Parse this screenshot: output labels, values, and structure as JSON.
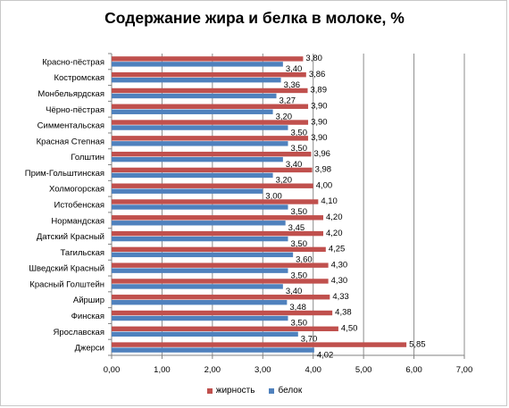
{
  "chart_data": {
    "type": "bar",
    "orientation": "horizontal",
    "title": "Содержание жира и белка в молоке, %",
    "categories": [
      "Красно-пёстрая",
      "Костромская",
      "Монбельярдская",
      "Чёрно-пёстрая",
      "Симментальская",
      "Красная Степная",
      "Голштин",
      "Прим-Гольштинская",
      "Холмогорская",
      "Истобенская",
      "Нормандская",
      "Датский Красный",
      "Тагильская",
      "Шведский Красный",
      "Красный Голштейн",
      "Айршир",
      "Финская",
      "Ярославская",
      "Джерси"
    ],
    "series": [
      {
        "name": "жирность",
        "color": "#c0504d",
        "values": [
          3.8,
          3.86,
          3.89,
          3.9,
          3.9,
          3.9,
          3.96,
          3.98,
          4.0,
          4.1,
          4.2,
          4.2,
          4.25,
          4.3,
          4.3,
          4.33,
          4.38,
          4.5,
          5.85
        ],
        "labels": [
          "3,80",
          "3,86",
          "3,89",
          "3,90",
          "3,90",
          "3,90",
          "3,96",
          "3,98",
          "4,00",
          "4,10",
          "4,20",
          "4,20",
          "4,25",
          "4,30",
          "4,30",
          "4,33",
          "4,38",
          "4,50",
          "5,85"
        ]
      },
      {
        "name": "белок",
        "color": "#4f81bd",
        "values": [
          3.4,
          3.36,
          3.27,
          3.2,
          3.5,
          3.5,
          3.4,
          3.2,
          3.0,
          3.5,
          3.45,
          3.5,
          3.6,
          3.5,
          3.4,
          3.48,
          3.5,
          3.7,
          4.02
        ],
        "labels": [
          "3,40",
          "3,36",
          "3,27",
          "3,20",
          "3,50",
          "3,50",
          "3,40",
          "3,20",
          "3,00",
          "3,50",
          "3,45",
          "3,50",
          "3,60",
          "3,50",
          "3,40",
          "3,48",
          "3,50",
          "3,70",
          "4,02"
        ]
      }
    ],
    "xlim": [
      0,
      7
    ],
    "xticks": [
      0,
      1,
      2,
      3,
      4,
      5,
      6,
      7
    ],
    "xtick_labels": [
      "0,00",
      "1,00",
      "2,00",
      "3,00",
      "4,00",
      "5,00",
      "6,00",
      "7,00"
    ],
    "grid": true,
    "legend_position": "bottom"
  }
}
